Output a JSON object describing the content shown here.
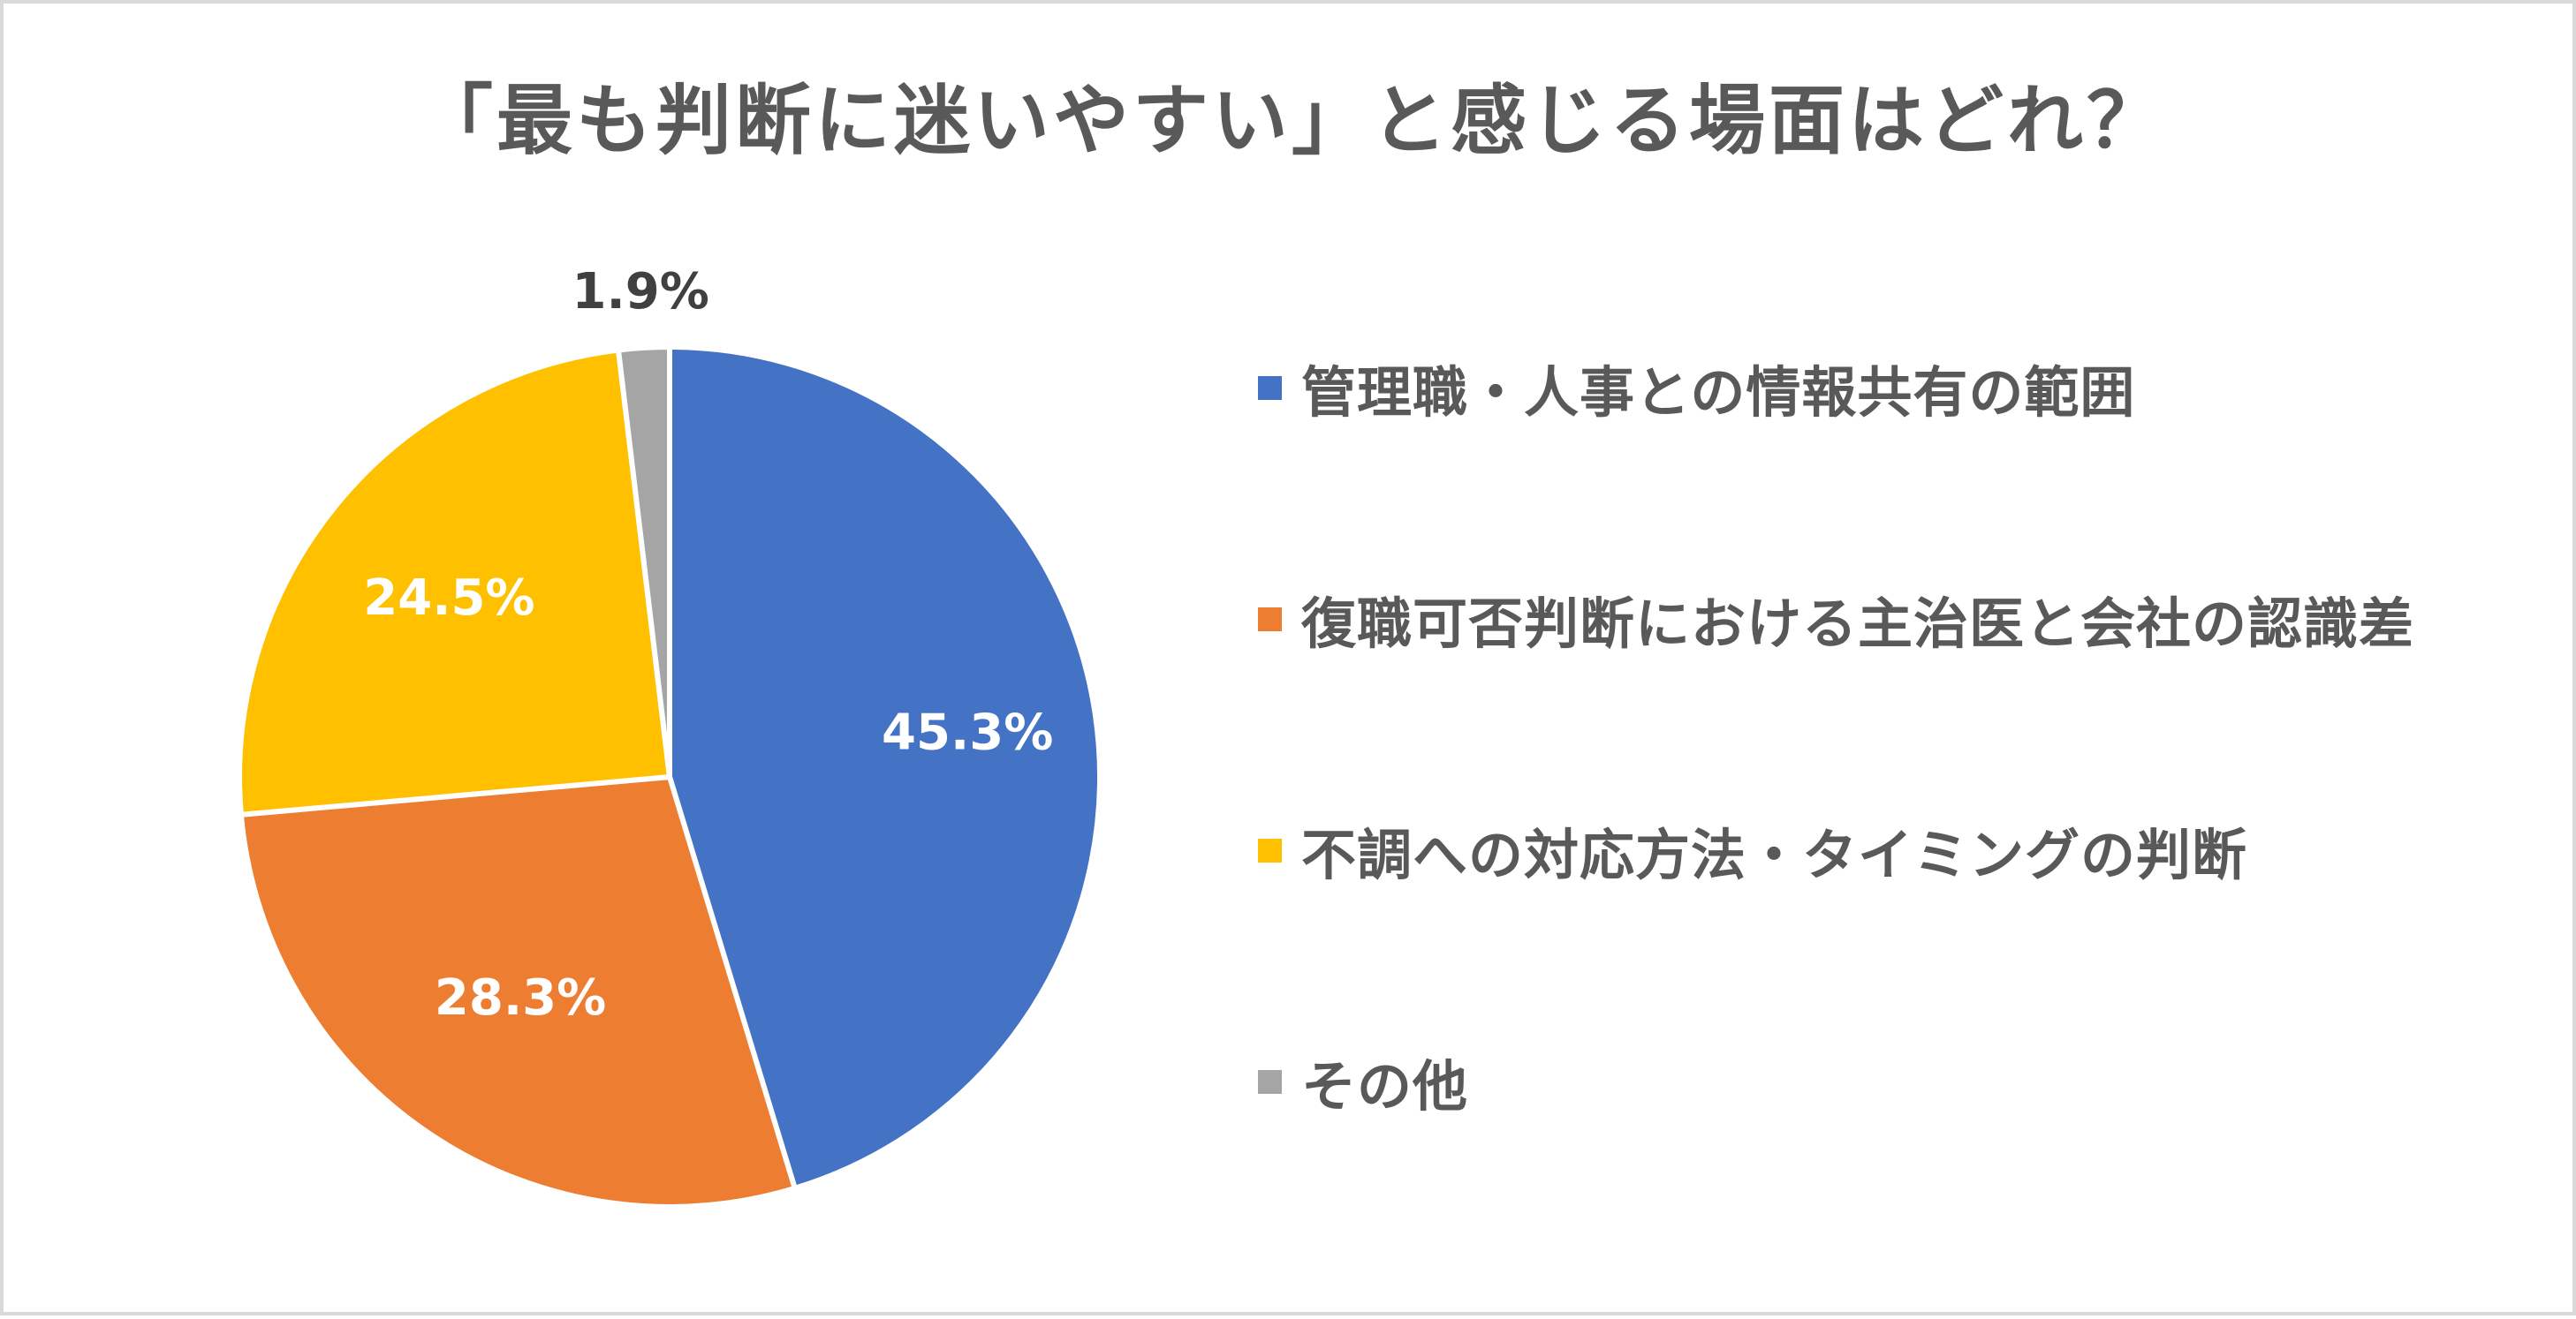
{
  "chart_data": {
    "type": "pie",
    "title": "「最も判断に迷いやすい」と感じる場面はどれ？",
    "categories": [
      "管理職・人事との情報共有の範囲",
      "復職可否判断における主治医と会社の認識差",
      "不調への対応方法・タイミングの判断",
      "その他"
    ],
    "values": [
      45.3,
      28.3,
      24.5,
      1.9
    ],
    "data_labels": [
      "45.3%",
      "28.3%",
      "24.5%",
      "1.9%"
    ],
    "colors": [
      "#4472C4",
      "#ED7D31",
      "#FFC000",
      "#A5A5A5"
    ],
    "label_colors": [
      "#FFFFFF",
      "#FFFFFF",
      "#FFFFFF",
      "#404040"
    ],
    "start_angle_deg": 0,
    "direction": "clockwise",
    "legend_position": "right"
  }
}
